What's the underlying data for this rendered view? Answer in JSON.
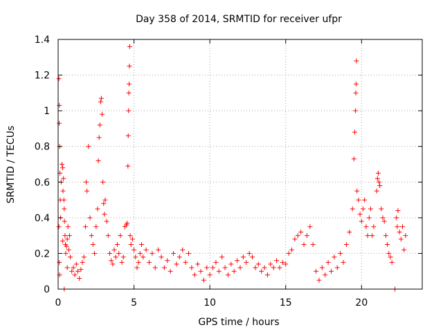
{
  "chart_data": {
    "type": "scatter",
    "title": "Day 358 of 2014, SRMTID for receiver ufpr",
    "xlabel": "GPS time / hours",
    "ylabel": "SRMTID / TECUs",
    "xlim": [
      0,
      24
    ],
    "ylim": [
      0,
      1.4
    ],
    "xticks": [
      0,
      5,
      10,
      15,
      20
    ],
    "yticks": [
      0,
      0.2,
      0.4,
      0.6,
      0.8,
      1,
      1.2,
      1.4
    ],
    "ytick_labels": [
      "0",
      "0.2",
      "0.4",
      "0.6",
      "0.8",
      "1",
      "1.2",
      "1.4"
    ],
    "grid": true,
    "marker": "+",
    "color": "#ff0000",
    "series": [
      {
        "name": "SRMTID",
        "points": [
          [
            0.05,
            1.18
          ],
          [
            0.07,
            0.93
          ],
          [
            0.08,
            1.03
          ],
          [
            0.1,
            0.8
          ],
          [
            0.12,
            0.65
          ],
          [
            0.14,
            0.5
          ],
          [
            0.16,
            0.4
          ],
          [
            0.05,
            0.35
          ],
          [
            0.08,
            0.15
          ],
          [
            0.1,
            0.08
          ],
          [
            0.2,
            0.6
          ],
          [
            0.25,
            0.7
          ],
          [
            0.3,
            0.68
          ],
          [
            0.32,
            0.55
          ],
          [
            0.35,
            0.62
          ],
          [
            0.38,
            0.5
          ],
          [
            0.4,
            0.45
          ],
          [
            0.42,
            0.38
          ],
          [
            0.45,
            0.3
          ],
          [
            0.48,
            0.25
          ],
          [
            0.5,
            0.2
          ],
          [
            0.55,
            0.24
          ],
          [
            0.6,
            0.28
          ],
          [
            0.65,
            0.35
          ],
          [
            0.7,
            0.22
          ],
          [
            0.75,
            0.3
          ],
          [
            0.8,
            0.18
          ],
          [
            0.4,
            0.0
          ],
          [
            0.6,
            0.12
          ],
          [
            0.3,
            0.27
          ],
          [
            0.9,
            0.1
          ],
          [
            1.0,
            0.12
          ],
          [
            1.1,
            0.08
          ],
          [
            1.2,
            0.14
          ],
          [
            1.3,
            0.1
          ],
          [
            1.4,
            0.06
          ],
          [
            1.5,
            0.11
          ],
          [
            1.6,
            0.15
          ],
          [
            1.7,
            0.18
          ],
          [
            1.8,
            0.35
          ],
          [
            1.85,
            0.6
          ],
          [
            1.9,
            0.55
          ],
          [
            2.0,
            0.8
          ],
          [
            2.1,
            0.4
          ],
          [
            2.2,
            0.3
          ],
          [
            2.3,
            0.25
          ],
          [
            2.4,
            0.2
          ],
          [
            2.5,
            0.35
          ],
          [
            2.6,
            0.45
          ],
          [
            2.65,
            0.72
          ],
          [
            2.7,
            0.85
          ],
          [
            2.75,
            0.92
          ],
          [
            2.8,
            1.05
          ],
          [
            2.85,
            1.07
          ],
          [
            2.9,
            0.98
          ],
          [
            2.95,
            0.6
          ],
          [
            3.0,
            0.48
          ],
          [
            3.05,
            0.42
          ],
          [
            3.1,
            0.5
          ],
          [
            3.2,
            0.38
          ],
          [
            3.3,
            0.3
          ],
          [
            3.4,
            0.2
          ],
          [
            3.5,
            0.16
          ],
          [
            3.6,
            0.14
          ],
          [
            3.7,
            0.22
          ],
          [
            3.8,
            0.18
          ],
          [
            3.9,
            0.25
          ],
          [
            4.0,
            0.2
          ],
          [
            4.1,
            0.3
          ],
          [
            4.2,
            0.15
          ],
          [
            4.3,
            0.18
          ],
          [
            4.4,
            0.35
          ],
          [
            4.5,
            0.36
          ],
          [
            4.55,
            0.37
          ],
          [
            4.6,
            0.69
          ],
          [
            4.62,
            0.86
          ],
          [
            4.64,
            1.0
          ],
          [
            4.66,
            1.1
          ],
          [
            4.68,
            1.15
          ],
          [
            4.7,
            1.25
          ],
          [
            4.72,
            1.36
          ],
          [
            4.75,
            0.3
          ],
          [
            4.8,
            0.25
          ],
          [
            4.9,
            0.28
          ],
          [
            5.0,
            0.22
          ],
          [
            5.1,
            0.18
          ],
          [
            5.2,
            0.12
          ],
          [
            5.3,
            0.15
          ],
          [
            5.4,
            0.2
          ],
          [
            5.5,
            0.25
          ],
          [
            5.6,
            0.18
          ],
          [
            5.8,
            0.22
          ],
          [
            6.0,
            0.15
          ],
          [
            6.2,
            0.2
          ],
          [
            6.4,
            0.12
          ],
          [
            6.6,
            0.22
          ],
          [
            6.8,
            0.18
          ],
          [
            7.0,
            0.12
          ],
          [
            7.2,
            0.16
          ],
          [
            7.4,
            0.1
          ],
          [
            7.6,
            0.2
          ],
          [
            7.8,
            0.14
          ],
          [
            8.0,
            0.18
          ],
          [
            8.2,
            0.22
          ],
          [
            8.4,
            0.15
          ],
          [
            8.6,
            0.2
          ],
          [
            8.8,
            0.12
          ],
          [
            9.0,
            0.08
          ],
          [
            9.2,
            0.14
          ],
          [
            9.4,
            0.1
          ],
          [
            9.6,
            0.05
          ],
          [
            9.8,
            0.12
          ],
          [
            10.0,
            0.08
          ],
          [
            10.2,
            0.12
          ],
          [
            10.4,
            0.15
          ],
          [
            10.6,
            0.1
          ],
          [
            10.8,
            0.18
          ],
          [
            11.0,
            0.12
          ],
          [
            11.2,
            0.08
          ],
          [
            11.4,
            0.14
          ],
          [
            11.6,
            0.1
          ],
          [
            11.8,
            0.16
          ],
          [
            12.0,
            0.12
          ],
          [
            12.2,
            0.18
          ],
          [
            12.4,
            0.15
          ],
          [
            12.6,
            0.2
          ],
          [
            12.8,
            0.18
          ],
          [
            13.0,
            0.12
          ],
          [
            13.2,
            0.14
          ],
          [
            13.4,
            0.1
          ],
          [
            13.6,
            0.12
          ],
          [
            13.8,
            0.08
          ],
          [
            14.0,
            0.14
          ],
          [
            14.2,
            0.12
          ],
          [
            14.4,
            0.16
          ],
          [
            14.6,
            0.12
          ],
          [
            14.8,
            0.15
          ],
          [
            15.0,
            0.14
          ],
          [
            15.2,
            0.2
          ],
          [
            15.4,
            0.22
          ],
          [
            15.6,
            0.28
          ],
          [
            15.8,
            0.3
          ],
          [
            16.0,
            0.32
          ],
          [
            16.2,
            0.25
          ],
          [
            16.4,
            0.3
          ],
          [
            16.6,
            0.35
          ],
          [
            16.8,
            0.25
          ],
          [
            17.0,
            0.1
          ],
          [
            17.2,
            0.05
          ],
          [
            17.4,
            0.12
          ],
          [
            17.6,
            0.08
          ],
          [
            17.8,
            0.15
          ],
          [
            18.0,
            0.1
          ],
          [
            18.2,
            0.18
          ],
          [
            18.4,
            0.12
          ],
          [
            18.6,
            0.2
          ],
          [
            18.8,
            0.15
          ],
          [
            19.0,
            0.25
          ],
          [
            19.2,
            0.32
          ],
          [
            19.4,
            0.45
          ],
          [
            19.5,
            0.73
          ],
          [
            19.55,
            0.88
          ],
          [
            19.6,
            1.0
          ],
          [
            19.62,
            1.1
          ],
          [
            19.64,
            1.15
          ],
          [
            19.66,
            1.28
          ],
          [
            19.7,
            0.55
          ],
          [
            19.8,
            0.5
          ],
          [
            19.9,
            0.42
          ],
          [
            20.0,
            0.38
          ],
          [
            20.1,
            0.45
          ],
          [
            20.2,
            0.5
          ],
          [
            20.3,
            0.35
          ],
          [
            20.4,
            0.3
          ],
          [
            20.5,
            0.4
          ],
          [
            20.6,
            0.45
          ],
          [
            20.7,
            0.3
          ],
          [
            20.8,
            0.35
          ],
          [
            21.0,
            0.55
          ],
          [
            21.05,
            0.62
          ],
          [
            21.1,
            0.65
          ],
          [
            21.15,
            0.6
          ],
          [
            21.2,
            0.58
          ],
          [
            21.3,
            0.45
          ],
          [
            21.4,
            0.4
          ],
          [
            21.5,
            0.38
          ],
          [
            21.6,
            0.3
          ],
          [
            21.7,
            0.25
          ],
          [
            21.8,
            0.2
          ],
          [
            21.9,
            0.18
          ],
          [
            22.0,
            0.15
          ],
          [
            22.2,
            0.0
          ],
          [
            22.3,
            0.4
          ],
          [
            22.35,
            0.35
          ],
          [
            22.4,
            0.44
          ],
          [
            22.5,
            0.32
          ],
          [
            22.6,
            0.28
          ],
          [
            22.7,
            0.35
          ],
          [
            22.8,
            0.22
          ],
          [
            22.9,
            0.3
          ]
        ]
      }
    ]
  }
}
